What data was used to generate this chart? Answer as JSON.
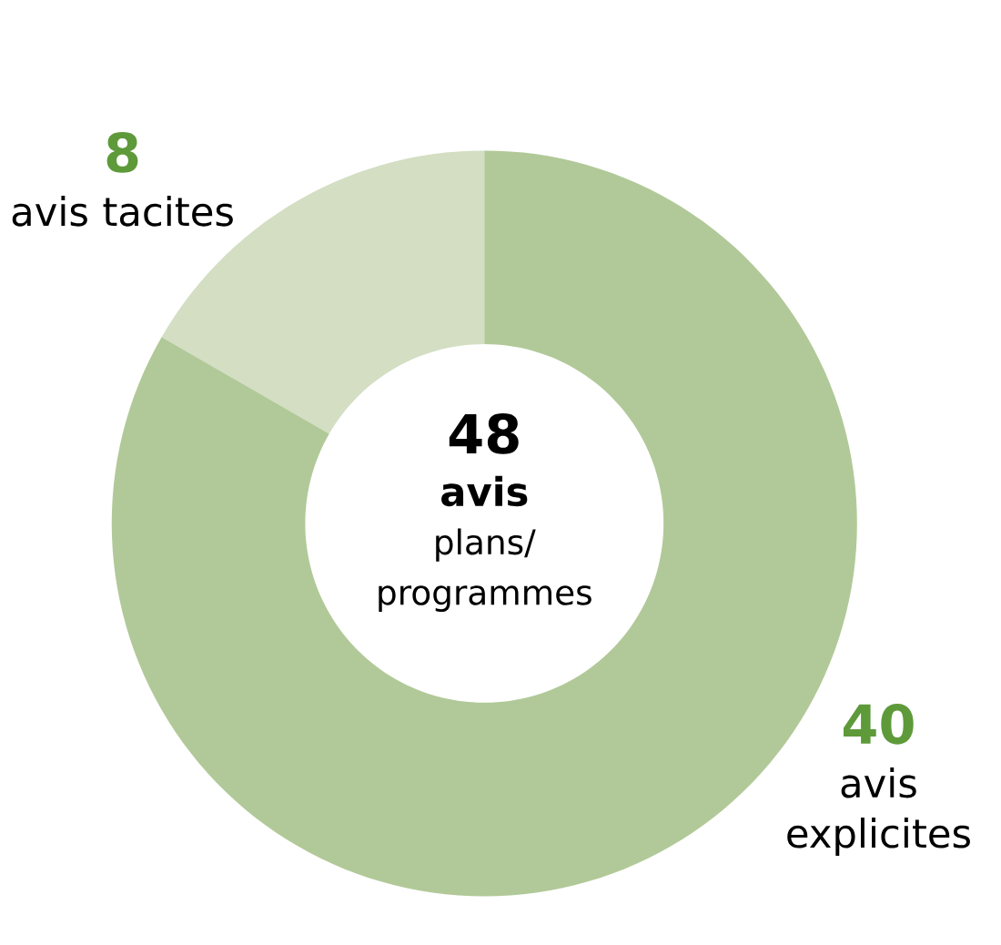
{
  "chart_data": {
    "type": "donut",
    "categories": [
      "avis tacites",
      "avis explicites"
    ],
    "values": [
      8,
      40
    ],
    "colors": [
      "#d3dec3",
      "#b1c998"
    ],
    "data_labels": true,
    "annotations": [
      "48",
      "avis",
      "plans/",
      "programmes"
    ]
  }
}
